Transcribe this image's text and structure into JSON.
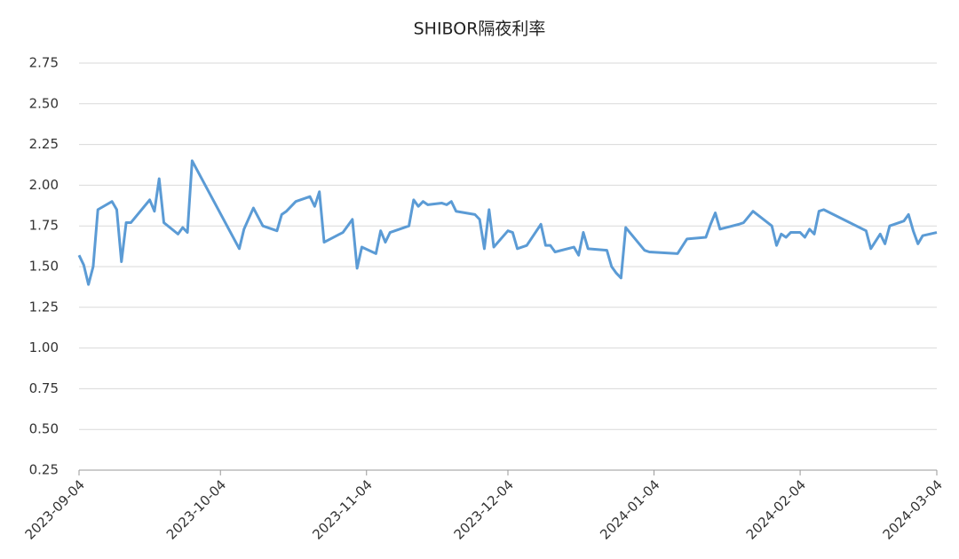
{
  "chart_data": {
    "type": "line",
    "title": "SHIBOR隔夜利率",
    "x": [
      "2023-09-04",
      "2023-09-05",
      "2023-09-06",
      "2023-09-07",
      "2023-09-08",
      "2023-09-11",
      "2023-09-12",
      "2023-09-13",
      "2023-09-14",
      "2023-09-15",
      "2023-09-19",
      "2023-09-20",
      "2023-09-21",
      "2023-09-22",
      "2023-09-25",
      "2023-09-26",
      "2023-09-27",
      "2023-09-28",
      "2023-10-08",
      "2023-10-09",
      "2023-10-11",
      "2023-10-13",
      "2023-10-16",
      "2023-10-17",
      "2023-10-18",
      "2023-10-20",
      "2023-10-23",
      "2023-10-24",
      "2023-10-25",
      "2023-10-26",
      "2023-10-30",
      "2023-11-01",
      "2023-11-02",
      "2023-11-03",
      "2023-11-06",
      "2023-11-07",
      "2023-11-08",
      "2023-11-09",
      "2023-11-13",
      "2023-11-14",
      "2023-11-15",
      "2023-11-16",
      "2023-11-17",
      "2023-11-20",
      "2023-11-21",
      "2023-11-22",
      "2023-11-23",
      "2023-11-27",
      "2023-11-28",
      "2023-11-29",
      "2023-11-30",
      "2023-12-01",
      "2023-12-04",
      "2023-12-05",
      "2023-12-06",
      "2023-12-08",
      "2023-12-11",
      "2023-12-12",
      "2023-12-13",
      "2023-12-14",
      "2023-12-18",
      "2023-12-19",
      "2023-12-20",
      "2023-12-21",
      "2023-12-25",
      "2023-12-26",
      "2023-12-27",
      "2023-12-28",
      "2023-12-29",
      "2024-01-02",
      "2024-01-03",
      "2024-01-09",
      "2024-01-11",
      "2024-01-15",
      "2024-01-16",
      "2024-01-17",
      "2024-01-18",
      "2024-01-22",
      "2024-01-23",
      "2024-01-25",
      "2024-01-29",
      "2024-01-30",
      "2024-01-31",
      "2024-02-01",
      "2024-02-02",
      "2024-02-04",
      "2024-02-05",
      "2024-02-06",
      "2024-02-07",
      "2024-02-08",
      "2024-02-09",
      "2024-02-18",
      "2024-02-19",
      "2024-02-21",
      "2024-02-22",
      "2024-02-23",
      "2024-02-26",
      "2024-02-27",
      "2024-02-28",
      "2024-02-29",
      "2024-03-01",
      "2024-03-04"
    ],
    "series": [
      {
        "name": "SHIBOR隔夜利率",
        "color": "#5b9bd5",
        "values": [
          1.57,
          1.51,
          1.39,
          1.5,
          1.85,
          1.9,
          1.85,
          1.53,
          1.77,
          1.77,
          1.91,
          1.84,
          2.04,
          1.77,
          1.7,
          1.74,
          1.71,
          2.15,
          1.61,
          1.73,
          1.86,
          1.75,
          1.72,
          1.82,
          1.84,
          1.9,
          1.93,
          1.87,
          1.96,
          1.65,
          1.71,
          1.79,
          1.49,
          1.62,
          1.58,
          1.72,
          1.65,
          1.71,
          1.75,
          1.91,
          1.87,
          1.9,
          1.88,
          1.89,
          1.88,
          1.9,
          1.84,
          1.82,
          1.79,
          1.61,
          1.85,
          1.62,
          1.72,
          1.71,
          1.61,
          1.63,
          1.76,
          1.63,
          1.63,
          1.59,
          1.62,
          1.57,
          1.71,
          1.61,
          1.6,
          1.5,
          1.46,
          1.43,
          1.74,
          1.6,
          1.59,
          1.58,
          1.67,
          1.68,
          1.76,
          1.83,
          1.73,
          1.76,
          1.77,
          1.84,
          1.75,
          1.63,
          1.7,
          1.68,
          1.71,
          1.71,
          1.68,
          1.73,
          1.7,
          1.84,
          1.85,
          1.72,
          1.61,
          1.7,
          1.64,
          1.75,
          1.78,
          1.82,
          1.72,
          1.64,
          1.69,
          1.71
        ]
      }
    ],
    "xlim": [
      "2023-09-04",
      "2024-03-04"
    ],
    "xticks": [
      "2023-09-04",
      "2023-10-04",
      "2023-11-04",
      "2023-12-04",
      "2024-01-04",
      "2024-02-04",
      "2024-03-04"
    ],
    "ylim": [
      0.25,
      2.75
    ],
    "yticks": [
      {
        "value": 0.25,
        "label": "0.25"
      },
      {
        "value": 0.5,
        "label": "0.50"
      },
      {
        "value": 0.75,
        "label": "0.75"
      },
      {
        "value": 1,
        "label": "1.00"
      },
      {
        "value": 1.25,
        "label": "1.25"
      },
      {
        "value": 1.5,
        "label": "1.50"
      },
      {
        "value": 1.75,
        "label": "1.75"
      },
      {
        "value": 2,
        "label": "2.00"
      },
      {
        "value": 2.25,
        "label": "2.25"
      },
      {
        "value": 2.5,
        "label": "2.50"
      },
      {
        "value": 2.75,
        "label": "2.75"
      }
    ],
    "grid": true
  }
}
